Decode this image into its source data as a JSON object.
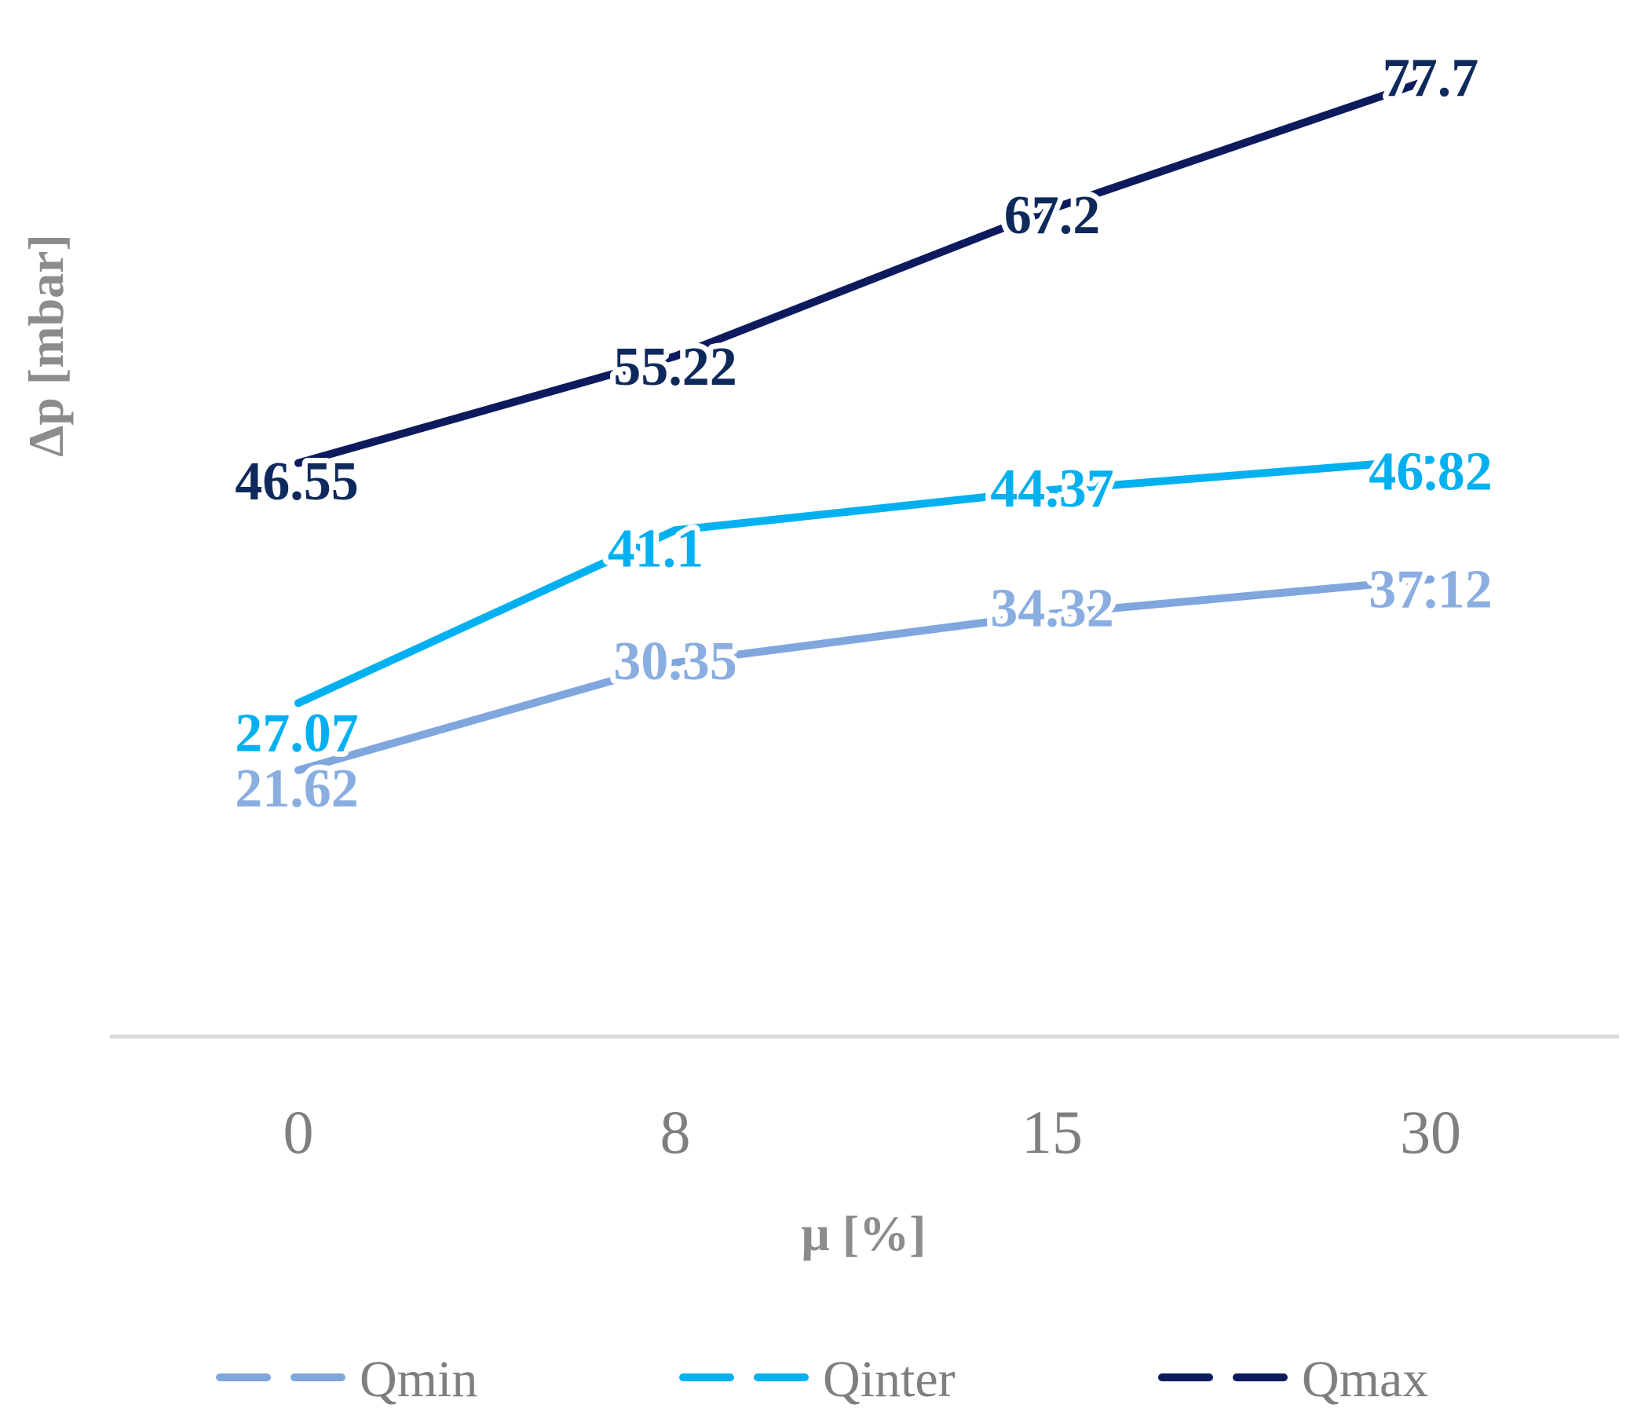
{
  "chart_data": {
    "type": "line",
    "title": "",
    "xlabel": "μ [%]",
    "ylabel": "Δp [mbar]",
    "categories": [
      "0",
      "8",
      "15",
      "30"
    ],
    "ylim": [
      0,
      80
    ],
    "grid": false,
    "legend_position": "bottom",
    "series": [
      {
        "name": "Qmin",
        "values": [
          21.62,
          30.35,
          34.32,
          37.12
        ],
        "labels": [
          "21.62",
          "30.35",
          "34.32",
          "37.12"
        ],
        "color": "#7fa6dd",
        "label_color": "#8aaee0"
      },
      {
        "name": "Qinter",
        "values": [
          27.07,
          41.1,
          44.37,
          46.82
        ],
        "labels": [
          "27.07",
          "41.1",
          "44.37",
          "46.82"
        ],
        "color": "#00b0f0",
        "label_color": "#00b0f0"
      },
      {
        "name": "Qmax",
        "values": [
          46.55,
          55.22,
          67.2,
          77.7
        ],
        "labels": [
          "46.55",
          "55.22",
          "67.2",
          "77.7"
        ],
        "color": "#0d1b5e",
        "label_color": "#0e2a5c"
      }
    ],
    "axis_color": "#d9d9d9"
  }
}
